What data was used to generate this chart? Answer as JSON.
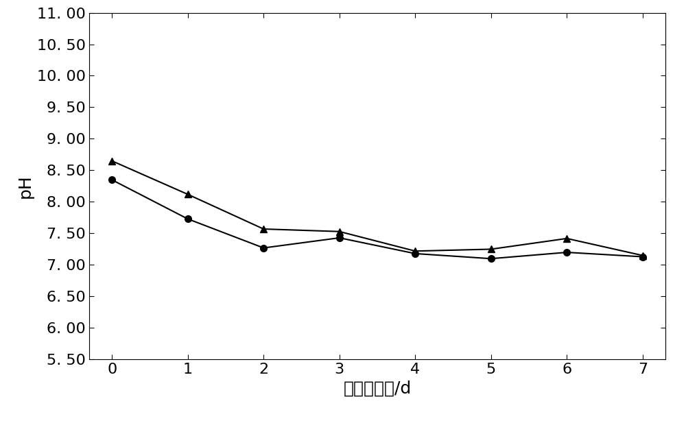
{
  "x": [
    0,
    1,
    2,
    3,
    4,
    5,
    6,
    7
  ],
  "circle_series": [
    8.35,
    7.73,
    7.27,
    7.43,
    7.18,
    7.1,
    7.2,
    7.13
  ],
  "triangle_series": [
    8.65,
    8.12,
    7.57,
    7.53,
    7.22,
    7.25,
    7.42,
    7.15
  ],
  "circle_color": "#000000",
  "triangle_color": "#000000",
  "line_color": "#000000",
  "xlabel": "预处理时间/d",
  "ylabel": "pH",
  "xlim": [
    -0.3,
    7.3
  ],
  "ylim": [
    5.5,
    11.0
  ],
  "yticks": [
    5.5,
    6.0,
    6.5,
    7.0,
    7.5,
    8.0,
    8.5,
    9.0,
    9.5,
    10.0,
    10.5,
    11.0
  ],
  "ytick_labels": [
    "5. 50",
    "6. 00",
    "6. 50",
    "7. 00",
    "7. 50",
    "8. 00",
    "8. 50",
    "9. 00",
    "9. 50",
    "10. 00",
    "10. 50",
    "11. 00"
  ],
  "xticks": [
    0,
    1,
    2,
    3,
    4,
    5,
    6,
    7
  ],
  "background_color": "#ffffff",
  "plot_background": "#ffffff",
  "title": "",
  "linewidth": 1.5,
  "markersize": 7,
  "tick_fontsize": 16,
  "label_fontsize": 18
}
